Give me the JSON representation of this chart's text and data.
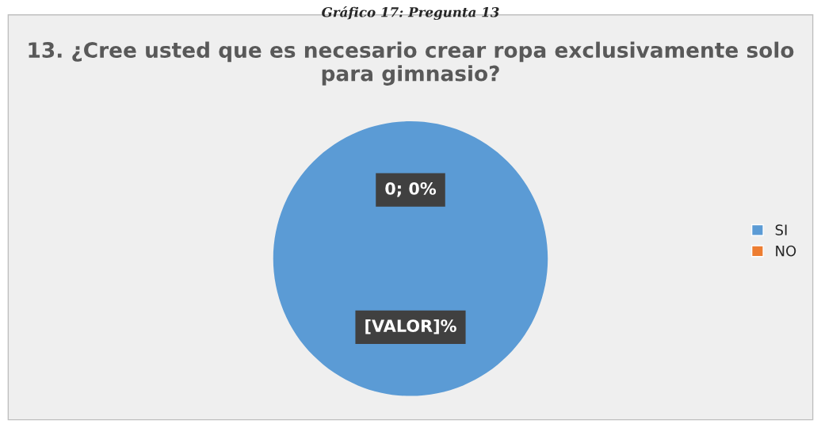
{
  "chart_data": {
    "type": "pie",
    "title": "13. ¿Cree usted que es necesario crear ropa exclusivamente solo para gimnasio?",
    "annotations": [
      "Gráfico 17: Pregunta 13"
    ],
    "categories": [
      "SI",
      "NO"
    ],
    "values": [
      100,
      0
    ],
    "colors": [
      "#5b9bd5",
      "#ed7d31"
    ],
    "value_labels": [
      "[VALOR]%",
      "0; 0%"
    ],
    "legend": "right"
  }
}
